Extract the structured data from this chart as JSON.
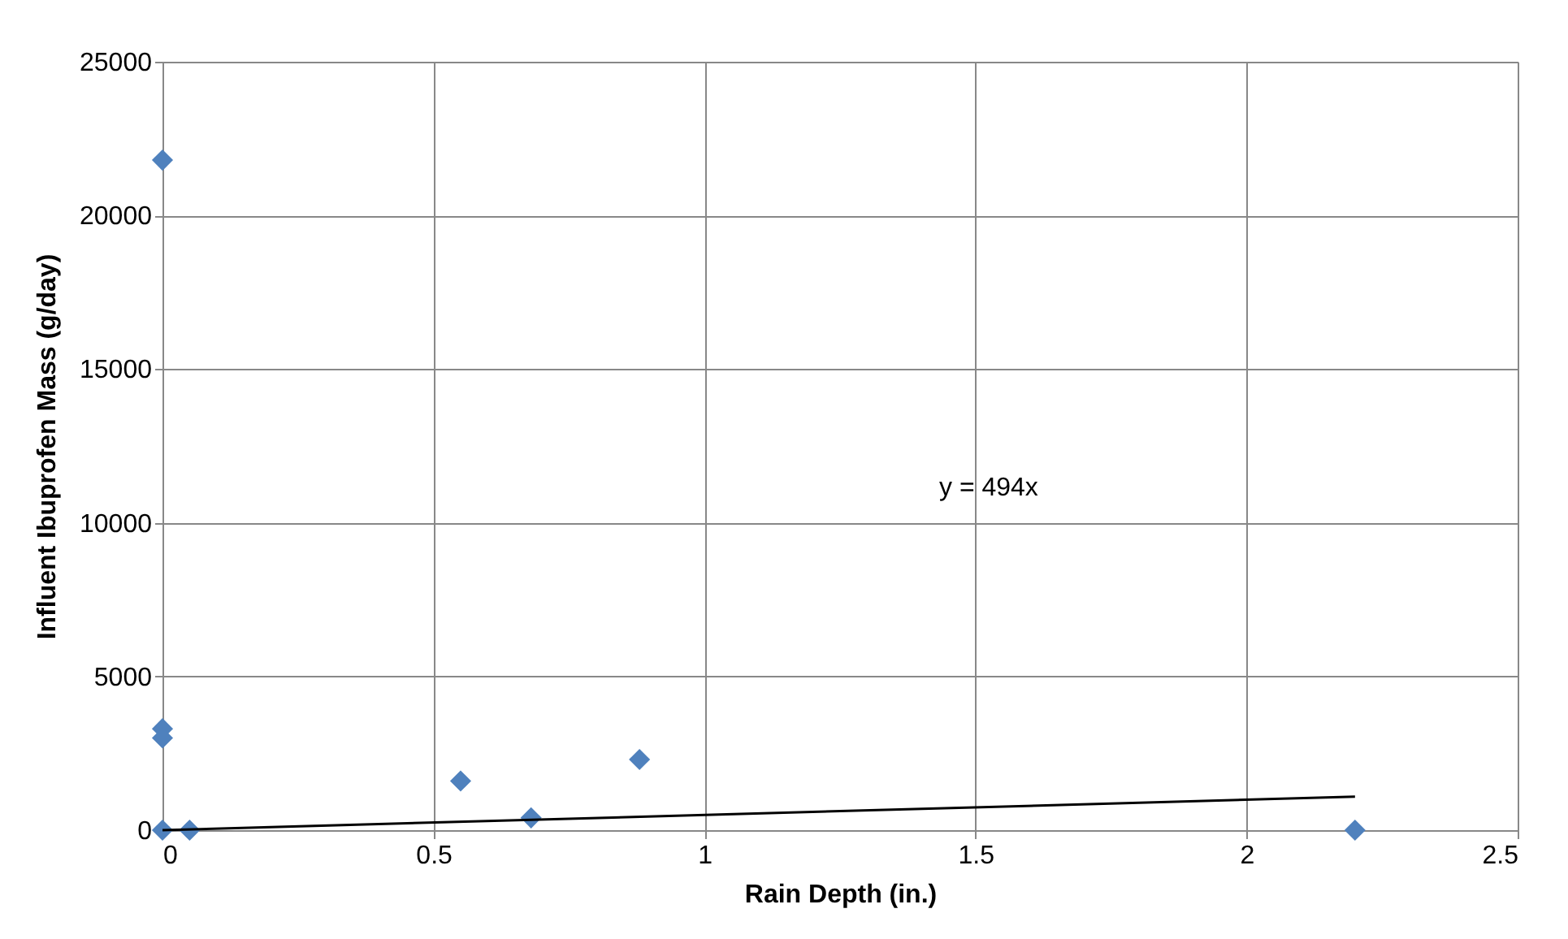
{
  "chart_data": {
    "type": "scatter",
    "xlabel": "Rain Depth (in.)",
    "ylabel": "Influent Ibuprofen Mass (g/day)",
    "xlim": [
      0,
      2.5
    ],
    "xticks": [
      0,
      0.5,
      1,
      1.5,
      2,
      2.5
    ],
    "ylim": [
      0,
      25000
    ],
    "yticks": [
      0,
      5000,
      10000,
      15000,
      20000,
      25000
    ],
    "grid": true,
    "marker": "diamond",
    "annotations": [
      "y = 494x"
    ],
    "series": [
      {
        "color": "#4f81bd",
        "x": [
          0,
          0,
          0,
          0,
          0.05,
          0.55,
          0.68,
          0.88,
          2.2
        ],
        "values": [
          21800,
          3300,
          3000,
          0,
          0,
          1600,
          400,
          2300,
          0
        ]
      },
      {
        "type": "line",
        "marker": "none",
        "color": "#000000",
        "x": [
          0,
          2.2
        ],
        "values": [
          0,
          1090
        ]
      }
    ]
  }
}
